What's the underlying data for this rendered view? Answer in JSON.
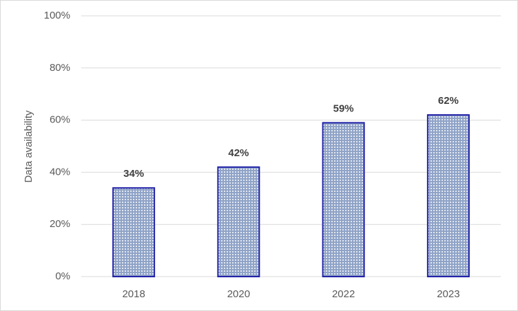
{
  "chart_data": {
    "type": "bar",
    "y_label": "Data availability",
    "categories": [
      "2018",
      "2020",
      "2022",
      "2023"
    ],
    "values": [
      34,
      42,
      59,
      62
    ],
    "value_labels": [
      "34%",
      "42%",
      "59%",
      "62%"
    ],
    "color": "#2222a8",
    "ylim": [
      0,
      100
    ],
    "yticks": [
      {
        "value": 0,
        "label": "0%"
      },
      {
        "value": 20,
        "label": "20%"
      },
      {
        "value": 40,
        "label": "40%"
      },
      {
        "value": 60,
        "label": "60%"
      },
      {
        "value": 80,
        "label": "80%"
      },
      {
        "value": 100,
        "label": "100%"
      }
    ],
    "grid": true
  }
}
